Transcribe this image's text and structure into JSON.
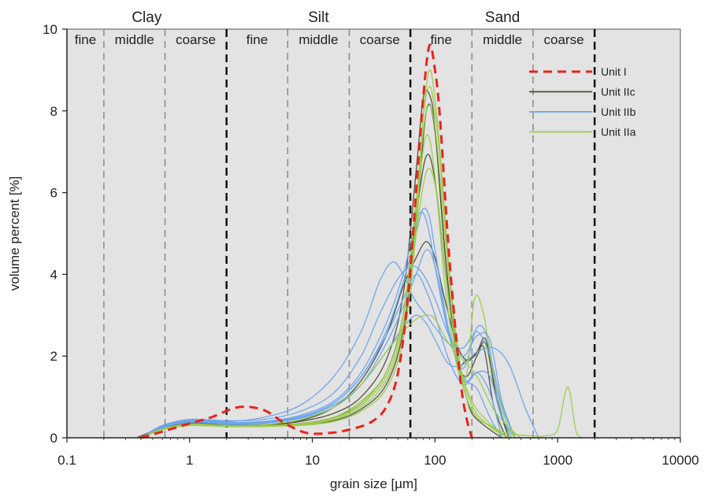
{
  "chart_data": {
    "type": "line",
    "xlabel": "grain size [µm]",
    "ylabel": "volume percent [%]",
    "xscale": "log",
    "xlim": [
      0.1,
      10000
    ],
    "ylim": [
      0,
      10
    ],
    "grid": false,
    "background": "#e3e3e3",
    "x_ticks": [
      {
        "value": 0.1,
        "label": "0.1"
      },
      {
        "value": 1,
        "label": "1"
      },
      {
        "value": 10,
        "label": "10"
      },
      {
        "value": 100,
        "label": "100"
      },
      {
        "value": 1000,
        "label": "1000"
      },
      {
        "value": 10000,
        "label": "10000"
      }
    ],
    "y_ticks": [
      {
        "value": 0,
        "label": "0"
      },
      {
        "value": 2,
        "label": "2"
      },
      {
        "value": 4,
        "label": "4"
      },
      {
        "value": 6,
        "label": "6"
      },
      {
        "value": 8,
        "label": "8"
      },
      {
        "value": 10,
        "label": "10"
      }
    ],
    "class_labels": [
      {
        "text": "Clay",
        "x_from": 0.1,
        "x_to": 2
      },
      {
        "text": "Silt",
        "x_from": 2,
        "x_to": 63
      },
      {
        "text": "Sand",
        "x_from": 63,
        "x_to": 2000
      }
    ],
    "subclass_labels": [
      {
        "text": "fine",
        "x_from": 0.1,
        "x_to": 0.2
      },
      {
        "text": "middle",
        "x_from": 0.2,
        "x_to": 0.63
      },
      {
        "text": "coarse",
        "x_from": 0.63,
        "x_to": 2
      },
      {
        "text": "fine",
        "x_from": 2,
        "x_to": 6.3
      },
      {
        "text": "middle",
        "x_from": 6.3,
        "x_to": 20
      },
      {
        "text": "coarse",
        "x_from": 20,
        "x_to": 63
      },
      {
        "text": "fine",
        "x_from": 63,
        "x_to": 200
      },
      {
        "text": "middle",
        "x_from": 200,
        "x_to": 630
      },
      {
        "text": "coarse",
        "x_from": 630,
        "x_to": 2000
      }
    ],
    "boundaries": [
      {
        "x": 0.2,
        "type": "minor"
      },
      {
        "x": 0.63,
        "type": "minor"
      },
      {
        "x": 2,
        "type": "major"
      },
      {
        "x": 6.3,
        "type": "minor"
      },
      {
        "x": 20,
        "type": "minor"
      },
      {
        "x": 63,
        "type": "major"
      },
      {
        "x": 200,
        "type": "minor"
      },
      {
        "x": 630,
        "type": "minor"
      },
      {
        "x": 2000,
        "type": "major"
      }
    ],
    "legend": {
      "placement": "top-right",
      "entries": [
        {
          "name": "Unit I",
          "color": "#e8231f",
          "dash": true
        },
        {
          "name": "Unit IIc",
          "color": "#4a4d35",
          "dash": false
        },
        {
          "name": "Unit IIb",
          "color": "#6aa3ee",
          "dash": false
        },
        {
          "name": "Unit IIa",
          "color": "#9ccb4a",
          "dash": false
        }
      ]
    },
    "series": [
      {
        "group": "Unit I",
        "color": "#e8231f",
        "dash": true,
        "x": [
          0.4,
          0.6,
          1,
          1.5,
          2.5,
          4,
          6,
          9,
          14,
          20,
          30,
          40,
          50,
          60,
          70,
          80,
          90,
          100,
          110,
          130,
          160,
          180,
          200
        ],
        "y": [
          0,
          0.15,
          0.35,
          0.5,
          0.75,
          0.68,
          0.35,
          0.12,
          0.12,
          0.2,
          0.38,
          0.75,
          1.6,
          3.4,
          6.0,
          8.3,
          9.6,
          9.0,
          7.8,
          4.5,
          1.5,
          0.5,
          0
        ]
      },
      {
        "group": "Unit IIc",
        "color": "#4a4d35",
        "x": [
          0.37,
          0.6,
          1,
          2,
          4,
          8,
          15,
          25,
          40,
          55,
          70,
          80,
          90,
          100,
          120,
          150,
          180,
          220,
          260,
          320,
          400
        ],
        "y": [
          0,
          0.25,
          0.38,
          0.32,
          0.32,
          0.4,
          0.6,
          1.0,
          1.9,
          3.5,
          6.5,
          8.3,
          8.4,
          7.6,
          4.6,
          2.0,
          1.9,
          2.1,
          2.4,
          1.0,
          0
        ]
      },
      {
        "group": "Unit IIc",
        "color": "#4a4d35",
        "x": [
          0.4,
          0.6,
          1,
          2,
          4,
          8,
          15,
          25,
          40,
          55,
          70,
          85,
          100,
          120,
          150,
          180,
          220,
          260,
          320,
          400
        ],
        "y": [
          0,
          0.22,
          0.35,
          0.3,
          0.3,
          0.35,
          0.5,
          0.85,
          1.6,
          3.0,
          5.4,
          6.9,
          6.3,
          4.2,
          2.0,
          1.5,
          2.0,
          2.3,
          0.9,
          0
        ]
      },
      {
        "group": "Unit IIc",
        "color": "#4a4d35",
        "x": [
          0.4,
          0.6,
          1,
          2,
          4,
          8,
          15,
          25,
          40,
          55,
          70,
          85,
          100,
          120,
          150,
          180,
          210,
          250,
          300,
          380
        ],
        "y": [
          0,
          0.22,
          0.35,
          0.3,
          0.3,
          0.42,
          0.75,
          1.4,
          2.5,
          3.7,
          4.4,
          4.8,
          4.4,
          3.4,
          2.3,
          1.9,
          2.0,
          2.2,
          0.8,
          0
        ]
      },
      {
        "group": "Unit IIc",
        "color": "#4a4d35",
        "x": [
          0.4,
          0.6,
          1,
          2,
          4,
          8,
          15,
          25,
          40,
          55,
          70,
          85,
          100,
          120,
          150,
          180,
          200,
          230,
          280,
          350
        ],
        "y": [
          0,
          0.2,
          0.3,
          0.28,
          0.28,
          0.32,
          0.42,
          0.7,
          1.3,
          2.6,
          5.2,
          8.0,
          7.5,
          4.6,
          2.0,
          1.0,
          0.6,
          0.4,
          0.2,
          0
        ]
      },
      {
        "group": "Unit IIb",
        "color": "#6aa3ee",
        "x": [
          0.4,
          0.6,
          1,
          2,
          4,
          8,
          15,
          25,
          35,
          45,
          55,
          65,
          75,
          85,
          100,
          130,
          170,
          220,
          280,
          350,
          450
        ],
        "y": [
          0,
          0.3,
          0.45,
          0.4,
          0.5,
          0.8,
          1.5,
          2.6,
          3.8,
          4.3,
          4.0,
          3.5,
          3.2,
          3.0,
          2.7,
          2.3,
          2.2,
          2.6,
          2.0,
          0.8,
          0
        ]
      },
      {
        "group": "Unit IIb",
        "color": "#6aa3ee",
        "x": [
          0.4,
          0.6,
          1,
          2,
          4,
          8,
          15,
          25,
          35,
          50,
          65,
          80,
          100,
          130,
          170,
          220,
          280,
          350,
          450
        ],
        "y": [
          0,
          0.3,
          0.45,
          0.42,
          0.45,
          0.65,
          1.1,
          2.0,
          3.0,
          3.9,
          4.2,
          4.0,
          3.4,
          2.5,
          2.0,
          2.5,
          2.4,
          0.9,
          0
        ]
      },
      {
        "group": "Unit IIb",
        "color": "#6aa3ee",
        "x": [
          0.4,
          0.6,
          1,
          2,
          4,
          8,
          15,
          25,
          40,
          55,
          70,
          80,
          90,
          100,
          130,
          170,
          220,
          270,
          330,
          420
        ],
        "y": [
          0,
          0.28,
          0.42,
          0.38,
          0.4,
          0.55,
          0.9,
          1.6,
          2.8,
          4.0,
          5.3,
          5.5,
          5.0,
          4.2,
          2.5,
          1.7,
          2.7,
          2.4,
          0.8,
          0
        ]
      },
      {
        "group": "Unit IIb",
        "color": "#6aa3ee",
        "x": [
          0.4,
          0.6,
          1,
          2,
          4,
          8,
          15,
          25,
          40,
          55,
          70,
          85,
          100,
          130,
          170,
          220,
          300,
          400,
          550,
          700
        ],
        "y": [
          0,
          0.25,
          0.4,
          0.35,
          0.38,
          0.5,
          0.8,
          1.3,
          2.1,
          2.7,
          3.0,
          2.8,
          2.4,
          1.8,
          1.8,
          2.1,
          2.2,
          1.8,
          0.7,
          0
        ]
      },
      {
        "group": "Unit IIb",
        "color": "#6aa3ee",
        "x": [
          0.4,
          0.6,
          1,
          2,
          4,
          8,
          15,
          25,
          40,
          55,
          70,
          85,
          100,
          130,
          170,
          220,
          280,
          350,
          450
        ],
        "y": [
          0,
          0.25,
          0.38,
          0.33,
          0.35,
          0.5,
          0.85,
          1.5,
          2.5,
          3.4,
          4.0,
          3.6,
          3.0,
          1.9,
          1.3,
          1.6,
          1.5,
          0.5,
          0
        ]
      },
      {
        "group": "Unit IIb",
        "color": "#6aa3ee",
        "x": [
          0.4,
          0.6,
          1,
          2,
          4,
          8,
          15,
          25,
          40,
          55,
          70,
          80,
          90,
          100,
          130,
          170,
          220,
          280,
          350
        ],
        "y": [
          0,
          0.28,
          0.42,
          0.36,
          0.38,
          0.52,
          0.85,
          1.5,
          2.6,
          3.8,
          5.0,
          5.6,
          5.4,
          4.6,
          2.6,
          1.5,
          1.2,
          0.5,
          0
        ]
      },
      {
        "group": "Unit IIb",
        "color": "#6aa3ee",
        "x": [
          0.4,
          0.6,
          1,
          2,
          4,
          8,
          15,
          25,
          40,
          55,
          70,
          85,
          100,
          130,
          170,
          220,
          280,
          350
        ],
        "y": [
          0,
          0.25,
          0.4,
          0.35,
          0.36,
          0.48,
          0.75,
          1.3,
          2.3,
          3.2,
          4.0,
          4.6,
          4.2,
          2.6,
          1.4,
          1.6,
          1.1,
          0
        ]
      },
      {
        "group": "Unit IIa",
        "color": "#9ccb4a",
        "x": [
          0.4,
          0.6,
          1,
          2,
          4,
          8,
          15,
          25,
          40,
          55,
          70,
          80,
          90,
          100,
          110,
          130,
          160,
          200,
          250,
          320,
          400
        ],
        "y": [
          0,
          0.2,
          0.3,
          0.28,
          0.28,
          0.3,
          0.4,
          0.65,
          1.2,
          2.4,
          5.0,
          7.8,
          9.0,
          8.3,
          7.0,
          4.2,
          1.8,
          0.8,
          0.4,
          0.15,
          0
        ]
      },
      {
        "group": "Unit IIa",
        "color": "#9ccb4a",
        "x": [
          0.4,
          0.6,
          1,
          2,
          4,
          8,
          15,
          25,
          40,
          55,
          70,
          80,
          90,
          100,
          110,
          130,
          160,
          200,
          250,
          320,
          400
        ],
        "y": [
          0,
          0.2,
          0.3,
          0.28,
          0.28,
          0.32,
          0.45,
          0.75,
          1.4,
          2.7,
          5.3,
          7.8,
          8.6,
          8.0,
          6.8,
          4.0,
          1.8,
          0.9,
          0.5,
          0.2,
          0
        ]
      },
      {
        "group": "Unit IIa",
        "color": "#9ccb4a",
        "x": [
          0.4,
          0.6,
          1,
          2,
          4,
          8,
          15,
          25,
          40,
          55,
          70,
          85,
          100,
          120,
          150,
          180,
          210,
          250,
          300,
          380,
          450
        ],
        "y": [
          0,
          0.22,
          0.32,
          0.3,
          0.3,
          0.35,
          0.5,
          0.9,
          1.6,
          3.0,
          5.6,
          7.4,
          6.4,
          3.8,
          1.8,
          1.5,
          3.4,
          3.0,
          1.5,
          0.4,
          0
        ]
      },
      {
        "group": "Unit IIa",
        "color": "#9ccb4a",
        "x": [
          0.4,
          0.6,
          1,
          2,
          4,
          8,
          15,
          25,
          40,
          55,
          70,
          85,
          100,
          130,
          170,
          220,
          300,
          400,
          500
        ],
        "y": [
          0,
          0.22,
          0.34,
          0.3,
          0.32,
          0.45,
          0.75,
          1.3,
          2.1,
          2.6,
          2.9,
          3.0,
          2.9,
          2.3,
          1.9,
          1.5,
          0.7,
          0.25,
          0
        ]
      },
      {
        "group": "Unit IIa",
        "color": "#9ccb4a",
        "x": [
          0.4,
          0.6,
          1,
          2,
          4,
          8,
          15,
          25,
          40,
          55,
          70,
          85,
          100,
          120,
          150,
          180,
          220,
          280,
          350,
          450,
          600,
          800,
          1000,
          1150,
          1250,
          1400,
          1550
        ],
        "y": [
          0,
          0.2,
          0.3,
          0.28,
          0.28,
          0.32,
          0.45,
          0.8,
          1.5,
          2.8,
          5.0,
          6.5,
          6.2,
          4.2,
          2.0,
          1.0,
          0.5,
          0.3,
          0.15,
          0.08,
          0.05,
          0.05,
          0.2,
          1.1,
          1.15,
          0.2,
          0
        ]
      },
      {
        "group": "Unit IIa",
        "color": "#9ccb4a",
        "x": [
          0.4,
          0.6,
          1,
          2,
          4,
          8,
          15,
          25,
          40,
          55,
          70,
          85,
          100,
          120,
          150,
          180,
          220,
          280,
          350,
          420
        ],
        "y": [
          0,
          0.2,
          0.3,
          0.28,
          0.28,
          0.33,
          0.48,
          0.85,
          1.6,
          3.0,
          5.8,
          8.0,
          7.6,
          5.0,
          2.2,
          1.0,
          0.5,
          0.3,
          0.1,
          0
        ]
      }
    ]
  }
}
